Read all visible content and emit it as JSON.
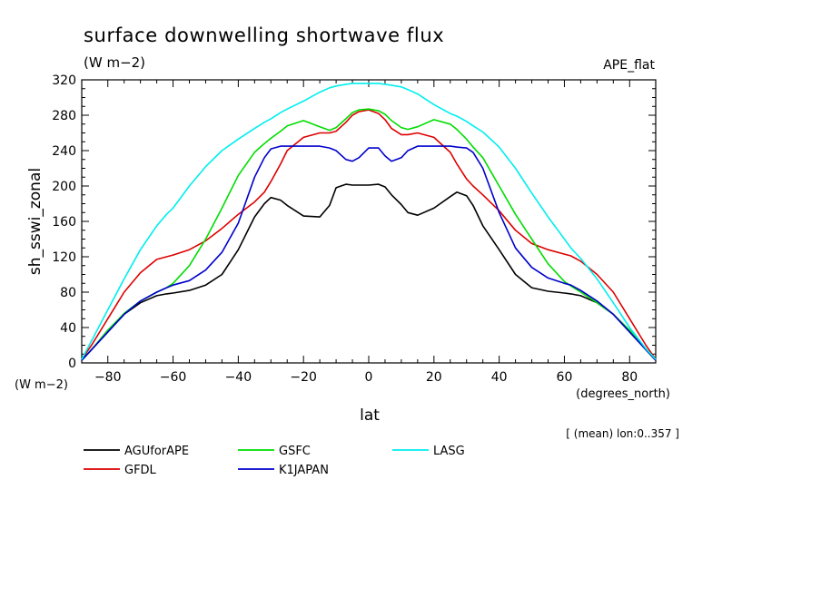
{
  "header": {
    "title": "surface downwelling shortwave flux",
    "units": "(W m−2)",
    "experiment": "APE_flat"
  },
  "axis_units_note": "(W m−2)",
  "x_units_note": "(degrees_north)",
  "x_title": "lat",
  "y_title": "sh_sswi_zonal",
  "mean_note": "[ (mean) lon:0..357 ]",
  "legend": [
    {
      "name": "AGUforAPE",
      "color": "#000000"
    },
    {
      "name": "GSFC",
      "color": "#00dd00"
    },
    {
      "name": "LASG",
      "color": "#00eeee"
    },
    {
      "name": "GFDL",
      "color": "#dd0000"
    },
    {
      "name": "K1JAPAN",
      "color": "#0000cc"
    }
  ],
  "chart_data": {
    "type": "line",
    "title": "surface downwelling shortwave flux",
    "xlabel": "lat",
    "ylabel": "sh_sswi_zonal",
    "xlim": [
      -88,
      88
    ],
    "ylim": [
      0,
      320
    ],
    "xticks": [
      -80,
      -60,
      -40,
      -20,
      0,
      20,
      40,
      60,
      80
    ],
    "yticks": [
      0,
      40,
      80,
      120,
      160,
      200,
      240,
      280,
      320
    ],
    "xtick_labels": [
      "−80",
      "−60",
      "−40",
      "−20",
      "0",
      "20",
      "40",
      "60",
      "80"
    ],
    "ytick_labels": [
      "0",
      "40",
      "80",
      "120",
      "160",
      "200",
      "240",
      "280",
      "320"
    ],
    "x": [
      -88,
      -85,
      -80,
      -75,
      -70,
      -65,
      -62,
      -60,
      -55,
      -50,
      -45,
      -40,
      -35,
      -32,
      -30,
      -27,
      -25,
      -20,
      -15,
      -12,
      -10,
      -7,
      -5,
      -3,
      0,
      3,
      5,
      7,
      10,
      12,
      15,
      20,
      25,
      27,
      30,
      32,
      35,
      40,
      45,
      50,
      55,
      60,
      62,
      65,
      70,
      75,
      80,
      85,
      88
    ],
    "series": [
      {
        "name": "AGUforAPE",
        "color": "#000000",
        "values": [
          3,
          15,
          35,
          55,
          68,
          76,
          78,
          79,
          82,
          88,
          100,
          128,
          165,
          180,
          187,
          184,
          178,
          166,
          165,
          178,
          198,
          202,
          201,
          201,
          201,
          202,
          199,
          190,
          179,
          170,
          167,
          175,
          188,
          193,
          189,
          178,
          155,
          128,
          100,
          85,
          81,
          79,
          78,
          76,
          68,
          55,
          35,
          15,
          3
        ]
      },
      {
        "name": "GFDL",
        "color": "#dd0000",
        "values": [
          4,
          20,
          50,
          80,
          102,
          117,
          120,
          122,
          128,
          138,
          152,
          168,
          182,
          193,
          205,
          225,
          240,
          255,
          260,
          260,
          262,
          272,
          280,
          284,
          286,
          282,
          275,
          265,
          258,
          258,
          260,
          255,
          238,
          225,
          208,
          200,
          190,
          172,
          150,
          135,
          128,
          123,
          121,
          115,
          100,
          80,
          50,
          20,
          4
        ]
      },
      {
        "name": "GSFC",
        "color": "#00dd00",
        "values": [
          3,
          15,
          37,
          56,
          70,
          80,
          85,
          90,
          110,
          140,
          175,
          212,
          238,
          248,
          254,
          262,
          268,
          274,
          267,
          263,
          266,
          276,
          283,
          286,
          287,
          285,
          281,
          274,
          266,
          264,
          267,
          275,
          270,
          264,
          253,
          244,
          232,
          200,
          168,
          140,
          112,
          92,
          87,
          80,
          68,
          55,
          37,
          15,
          3
        ]
      },
      {
        "name": "K1JAPAN",
        "color": "#0000cc",
        "values": [
          3,
          15,
          35,
          55,
          70,
          80,
          85,
          88,
          93,
          105,
          125,
          158,
          210,
          232,
          242,
          245,
          245,
          245,
          245,
          243,
          240,
          230,
          228,
          232,
          243,
          243,
          234,
          228,
          232,
          240,
          245,
          245,
          245,
          244,
          243,
          238,
          220,
          170,
          130,
          108,
          96,
          90,
          88,
          82,
          70,
          55,
          35,
          15,
          3
        ]
      },
      {
        "name": "LASG",
        "color": "#00eeee",
        "values": [
          4,
          25,
          60,
          95,
          128,
          155,
          168,
          175,
          200,
          222,
          240,
          253,
          265,
          272,
          276,
          283,
          287,
          296,
          306,
          311,
          313,
          315,
          316,
          316,
          316,
          316,
          315,
          314,
          312,
          309,
          304,
          292,
          282,
          279,
          273,
          268,
          261,
          244,
          220,
          192,
          165,
          140,
          130,
          118,
          95,
          68,
          40,
          16,
          4
        ]
      }
    ]
  }
}
